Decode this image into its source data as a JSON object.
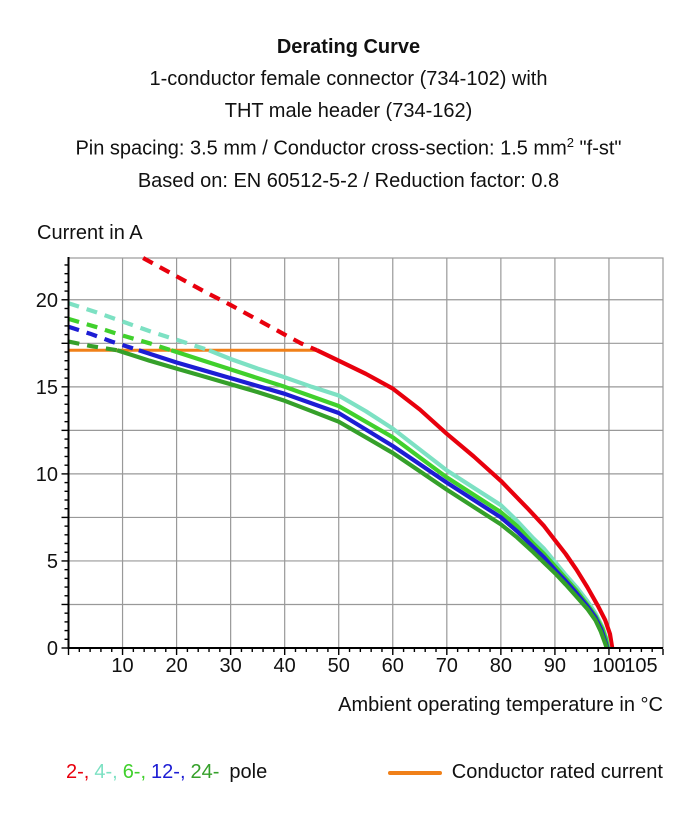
{
  "header": {
    "title": "Derating Curve",
    "line1": "1-conductor female connector (734-102) with",
    "line2": "THT male header (734-162)",
    "line3_prefix": "Pin spacing: 3.5 mm / Conductor cross-section: 1.5 mm",
    "line3_sup": "2",
    "line3_suffix": " \"f-st\"",
    "line4": "Based on: EN 60512-5-2 / Reduction factor: 0.8"
  },
  "chart_data": {
    "type": "line",
    "title": "Derating Curve",
    "subtitle": [
      "1-conductor female connector (734-102) with",
      "THT male header (734-162)",
      "Pin spacing: 3.5 mm / Conductor cross-section: 1.5 mm² \"f-st\"",
      "Based on: EN 60512-5-2 / Reduction factor: 0.8"
    ],
    "xlabel": "Ambient operating temperature in °C",
    "ylabel": "Current in A",
    "xlim": [
      0,
      110
    ],
    "ylim": [
      0,
      22.4
    ],
    "x_ticks": [
      10,
      20,
      30,
      40,
      50,
      60,
      70,
      80,
      90,
      100,
      105
    ],
    "y_ticks": [
      0,
      5,
      10,
      15,
      20
    ],
    "x_grid_step": 10,
    "y_grid_step": 2.5,
    "x_minor_tick_step": 2,
    "y_minor_tick_step": 0.5,
    "grid": true,
    "grid_color": "#999999",
    "axis_color": "#000000",
    "note": "curves are dashed above the conductor rated current and solid below it",
    "series": [
      {
        "name": "2-pole",
        "poles": 2,
        "color": "#e8000d",
        "dashed": [
          [
            13.8,
            22.4
          ],
          [
            20,
            21.35
          ],
          [
            25,
            20.5
          ],
          [
            30,
            19.7
          ],
          [
            35,
            18.85
          ],
          [
            40,
            18.0
          ],
          [
            43,
            17.5
          ],
          [
            46,
            17.1
          ]
        ],
        "solid": [
          [
            46,
            17.1
          ],
          [
            50,
            16.5
          ],
          [
            55,
            15.75
          ],
          [
            60,
            14.9
          ],
          [
            65,
            13.7
          ],
          [
            70,
            12.3
          ],
          [
            75,
            11.0
          ],
          [
            80,
            9.6
          ],
          [
            85,
            8.0
          ],
          [
            88,
            7.0
          ],
          [
            90,
            6.2
          ],
          [
            92,
            5.4
          ],
          [
            94,
            4.5
          ],
          [
            96,
            3.5
          ],
          [
            98,
            2.4
          ],
          [
            99.3,
            1.6
          ],
          [
            100.2,
            0.8
          ],
          [
            100.6,
            0
          ]
        ]
      },
      {
        "name": "4-pole",
        "poles": 4,
        "color": "#7de1c3",
        "dashed": [
          [
            0,
            19.8
          ],
          [
            5,
            19.3
          ],
          [
            10,
            18.75
          ],
          [
            15,
            18.2
          ],
          [
            20,
            17.7
          ],
          [
            26,
            17.1
          ]
        ],
        "solid": [
          [
            26,
            17.1
          ],
          [
            30,
            16.6
          ],
          [
            35,
            16.05
          ],
          [
            40,
            15.55
          ],
          [
            45,
            15.0
          ],
          [
            50,
            14.5
          ],
          [
            55,
            13.6
          ],
          [
            60,
            12.6
          ],
          [
            65,
            11.4
          ],
          [
            70,
            10.2
          ],
          [
            75,
            9.2
          ],
          [
            80,
            8.2
          ],
          [
            83,
            7.3
          ],
          [
            86,
            6.3
          ],
          [
            88,
            5.7
          ],
          [
            90,
            4.95
          ],
          [
            92,
            4.2
          ],
          [
            94,
            3.5
          ],
          [
            96,
            2.7
          ],
          [
            97.5,
            2.0
          ],
          [
            98.8,
            1.2
          ],
          [
            99.6,
            0.5
          ],
          [
            99.9,
            0
          ]
        ]
      },
      {
        "name": "6-pole",
        "poles": 6,
        "color": "#40d02c",
        "dashed": [
          [
            0,
            18.9
          ],
          [
            5,
            18.45
          ],
          [
            10,
            17.95
          ],
          [
            15,
            17.5
          ],
          [
            19,
            17.1
          ]
        ],
        "solid": [
          [
            19,
            17.1
          ],
          [
            25,
            16.5
          ],
          [
            30,
            16.0
          ],
          [
            35,
            15.5
          ],
          [
            40,
            15.0
          ],
          [
            45,
            14.45
          ],
          [
            50,
            13.9
          ],
          [
            55,
            13.0
          ],
          [
            60,
            12.1
          ],
          [
            65,
            10.95
          ],
          [
            70,
            9.8
          ],
          [
            75,
            8.8
          ],
          [
            80,
            7.8
          ],
          [
            83,
            7.0
          ],
          [
            86,
            6.0
          ],
          [
            88,
            5.4
          ],
          [
            90,
            4.7
          ],
          [
            92,
            4.0
          ],
          [
            94,
            3.3
          ],
          [
            96,
            2.5
          ],
          [
            97.5,
            1.85
          ],
          [
            98.8,
            1.1
          ],
          [
            99.5,
            0.45
          ],
          [
            99.8,
            0
          ]
        ]
      },
      {
        "name": "12-pole",
        "poles": 12,
        "color": "#1d1dd4",
        "dashed": [
          [
            0,
            18.45
          ],
          [
            4,
            18.05
          ],
          [
            8,
            17.6
          ],
          [
            13,
            17.1
          ]
        ],
        "solid": [
          [
            13,
            17.1
          ],
          [
            20,
            16.4
          ],
          [
            25,
            15.95
          ],
          [
            30,
            15.5
          ],
          [
            35,
            15.05
          ],
          [
            40,
            14.6
          ],
          [
            45,
            14.05
          ],
          [
            50,
            13.5
          ],
          [
            55,
            12.55
          ],
          [
            60,
            11.6
          ],
          [
            65,
            10.55
          ],
          [
            70,
            9.5
          ],
          [
            75,
            8.5
          ],
          [
            80,
            7.5
          ],
          [
            83,
            6.7
          ],
          [
            86,
            5.8
          ],
          [
            88,
            5.2
          ],
          [
            90,
            4.5
          ],
          [
            92,
            3.85
          ],
          [
            94,
            3.15
          ],
          [
            96,
            2.4
          ],
          [
            97.5,
            1.75
          ],
          [
            98.6,
            1.05
          ],
          [
            99.3,
            0.4
          ],
          [
            99.7,
            0
          ]
        ]
      },
      {
        "name": "24-pole",
        "poles": 24,
        "color": "#35a02a",
        "dashed": [
          [
            0,
            17.6
          ],
          [
            4,
            17.35
          ],
          [
            9,
            17.1
          ]
        ],
        "solid": [
          [
            9,
            17.1
          ],
          [
            15,
            16.5
          ],
          [
            20,
            16.05
          ],
          [
            25,
            15.6
          ],
          [
            30,
            15.15
          ],
          [
            35,
            14.7
          ],
          [
            40,
            14.2
          ],
          [
            45,
            13.6
          ],
          [
            50,
            13.0
          ],
          [
            55,
            12.1
          ],
          [
            60,
            11.2
          ],
          [
            65,
            10.15
          ],
          [
            70,
            9.1
          ],
          [
            75,
            8.1
          ],
          [
            80,
            7.1
          ],
          [
            83,
            6.35
          ],
          [
            86,
            5.5
          ],
          [
            88,
            4.9
          ],
          [
            90,
            4.3
          ],
          [
            92,
            3.65
          ],
          [
            94,
            2.95
          ],
          [
            96,
            2.25
          ],
          [
            97.5,
            1.6
          ],
          [
            98.5,
            0.95
          ],
          [
            99.2,
            0.35
          ],
          [
            99.6,
            0
          ]
        ]
      }
    ],
    "reference_line": {
      "label": "Conductor rated current",
      "color": "#f08019",
      "current_a": 17.1,
      "x_range": [
        0,
        46
      ]
    },
    "legend_position": "bottom"
  },
  "legend": {
    "pole_items": [
      {
        "label": "2-,",
        "color": "#e8000d"
      },
      {
        "label": "4-,",
        "color": "#7de1c3"
      },
      {
        "label": "6-,",
        "color": "#40d02c"
      },
      {
        "label": "12-,",
        "color": "#1d1dd4"
      },
      {
        "label": "24-",
        "color": "#35a02a"
      }
    ],
    "pole_suffix": "pole",
    "rated_label": "Conductor rated current",
    "rated_color": "#f08019"
  }
}
